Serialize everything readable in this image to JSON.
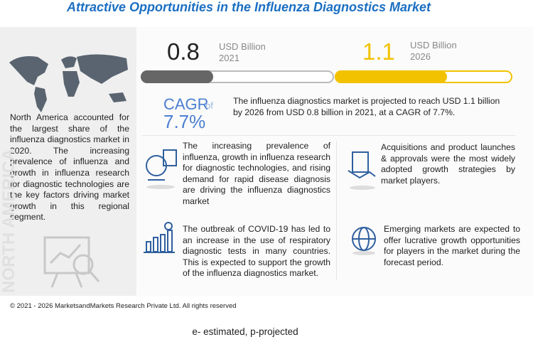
{
  "header": {
    "title": "Attractive Opportunities in the Influenza Diagnostics Market"
  },
  "region": {
    "text": "North America accounted for the largest share of the influenza diagnostics market in 2020. The increasing prevalence of influenza and growth in influenza research for diagnostic technologies are the key factors driving market growth in this regional segment.",
    "label": "NORTH AMERICA"
  },
  "stats": [
    {
      "value": "0.8",
      "unit": "USD Billion",
      "year": "2021"
    },
    {
      "value": "1.1",
      "unit": "USD Billion",
      "year": "2026"
    }
  ],
  "cagr": {
    "label": "CAGR",
    "of": "of",
    "value": "7.7%"
  },
  "summary": "The influenza diagnostics market is projected to reach USD 1.1 billion by 2026 from USD 0.8 billion in 2021, at a CAGR of 7.7%.",
  "cards": [
    "The increasing prevalence of influenza, growth in influenza research for diagnostic technologies, and rising demand for rapid disease diagnosis are driving the influenza diagnostics market",
    "Acquisitions and product launches & approvals were the most widely adopted growth strategies by market players.",
    "The outbreak of COVID-19 has led to an increase in the use of respiratory diagnostic tests in many countries. This is expected to support the growth of the influenza diagnostics market.",
    "Emerging markets are expected to offer lucrative growth opportunities for players in the market during the forecast period."
  ],
  "footer": "© 2021 - 2026 MarketsandMarkets Research Private Ltd. All rights reserved",
  "note": "e- estimated, p-projected"
}
